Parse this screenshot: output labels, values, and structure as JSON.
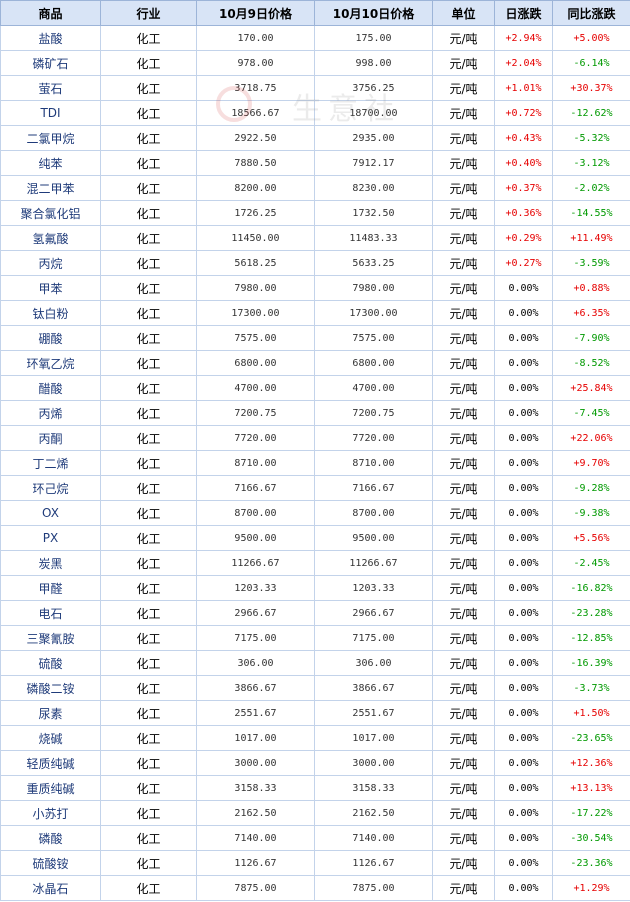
{
  "table": {
    "headers": [
      "商品",
      "行业",
      "10月9日价格",
      "10月10日价格",
      "单位",
      "日涨跌",
      "同比涨跌"
    ],
    "rows": [
      [
        "盐酸",
        "化工",
        "170.00",
        "175.00",
        "元/吨",
        "+2.94%",
        "+5.00%"
      ],
      [
        "磷矿石",
        "化工",
        "978.00",
        "998.00",
        "元/吨",
        "+2.04%",
        "-6.14%"
      ],
      [
        "萤石",
        "化工",
        "3718.75",
        "3756.25",
        "元/吨",
        "+1.01%",
        "+30.37%"
      ],
      [
        "TDI",
        "化工",
        "18566.67",
        "18700.00",
        "元/吨",
        "+0.72%",
        "-12.62%"
      ],
      [
        "二氯甲烷",
        "化工",
        "2922.50",
        "2935.00",
        "元/吨",
        "+0.43%",
        "-5.32%"
      ],
      [
        "纯苯",
        "化工",
        "7880.50",
        "7912.17",
        "元/吨",
        "+0.40%",
        "-3.12%"
      ],
      [
        "混二甲苯",
        "化工",
        "8200.00",
        "8230.00",
        "元/吨",
        "+0.37%",
        "-2.02%"
      ],
      [
        "聚合氯化铝",
        "化工",
        "1726.25",
        "1732.50",
        "元/吨",
        "+0.36%",
        "-14.55%"
      ],
      [
        "氢氟酸",
        "化工",
        "11450.00",
        "11483.33",
        "元/吨",
        "+0.29%",
        "+11.49%"
      ],
      [
        "丙烷",
        "化工",
        "5618.25",
        "5633.25",
        "元/吨",
        "+0.27%",
        "-3.59%"
      ],
      [
        "甲苯",
        "化工",
        "7980.00",
        "7980.00",
        "元/吨",
        "0.00%",
        "+0.88%"
      ],
      [
        "钛白粉",
        "化工",
        "17300.00",
        "17300.00",
        "元/吨",
        "0.00%",
        "+6.35%"
      ],
      [
        "硼酸",
        "化工",
        "7575.00",
        "7575.00",
        "元/吨",
        "0.00%",
        "-7.90%"
      ],
      [
        "环氧乙烷",
        "化工",
        "6800.00",
        "6800.00",
        "元/吨",
        "0.00%",
        "-8.52%"
      ],
      [
        "醋酸",
        "化工",
        "4700.00",
        "4700.00",
        "元/吨",
        "0.00%",
        "+25.84%"
      ],
      [
        "丙烯",
        "化工",
        "7200.75",
        "7200.75",
        "元/吨",
        "0.00%",
        "-7.45%"
      ],
      [
        "丙酮",
        "化工",
        "7720.00",
        "7720.00",
        "元/吨",
        "0.00%",
        "+22.06%"
      ],
      [
        "丁二烯",
        "化工",
        "8710.00",
        "8710.00",
        "元/吨",
        "0.00%",
        "+9.70%"
      ],
      [
        "环己烷",
        "化工",
        "7166.67",
        "7166.67",
        "元/吨",
        "0.00%",
        "-9.28%"
      ],
      [
        "OX",
        "化工",
        "8700.00",
        "8700.00",
        "元/吨",
        "0.00%",
        "-9.38%"
      ],
      [
        "PX",
        "化工",
        "9500.00",
        "9500.00",
        "元/吨",
        "0.00%",
        "+5.56%"
      ],
      [
        "炭黑",
        "化工",
        "11266.67",
        "11266.67",
        "元/吨",
        "0.00%",
        "-2.45%"
      ],
      [
        "甲醛",
        "化工",
        "1203.33",
        "1203.33",
        "元/吨",
        "0.00%",
        "-16.82%"
      ],
      [
        "电石",
        "化工",
        "2966.67",
        "2966.67",
        "元/吨",
        "0.00%",
        "-23.28%"
      ],
      [
        "三聚氰胺",
        "化工",
        "7175.00",
        "7175.00",
        "元/吨",
        "0.00%",
        "-12.85%"
      ],
      [
        "硫酸",
        "化工",
        "306.00",
        "306.00",
        "元/吨",
        "0.00%",
        "-16.39%"
      ],
      [
        "磷酸二铵",
        "化工",
        "3866.67",
        "3866.67",
        "元/吨",
        "0.00%",
        "-3.73%"
      ],
      [
        "尿素",
        "化工",
        "2551.67",
        "2551.67",
        "元/吨",
        "0.00%",
        "+1.50%"
      ],
      [
        "烧碱",
        "化工",
        "1017.00",
        "1017.00",
        "元/吨",
        "0.00%",
        "-23.65%"
      ],
      [
        "轻质纯碱",
        "化工",
        "3000.00",
        "3000.00",
        "元/吨",
        "0.00%",
        "+12.36%"
      ],
      [
        "重质纯碱",
        "化工",
        "3158.33",
        "3158.33",
        "元/吨",
        "0.00%",
        "+13.13%"
      ],
      [
        "小苏打",
        "化工",
        "2162.50",
        "2162.50",
        "元/吨",
        "0.00%",
        "-17.22%"
      ],
      [
        "磷酸",
        "化工",
        "7140.00",
        "7140.00",
        "元/吨",
        "0.00%",
        "-30.54%"
      ],
      [
        "硫酸铵",
        "化工",
        "1126.67",
        "1126.67",
        "元/吨",
        "0.00%",
        "-23.36%"
      ],
      [
        "冰晶石",
        "化工",
        "7875.00",
        "7875.00",
        "元/吨",
        "0.00%",
        "+1.29%"
      ]
    ]
  },
  "watermark": {
    "text": "生意社"
  },
  "colors": {
    "up": "#e60000",
    "down": "#009900",
    "header_bg": "#d8e4f6",
    "name_text": "#1f3b7a"
  }
}
